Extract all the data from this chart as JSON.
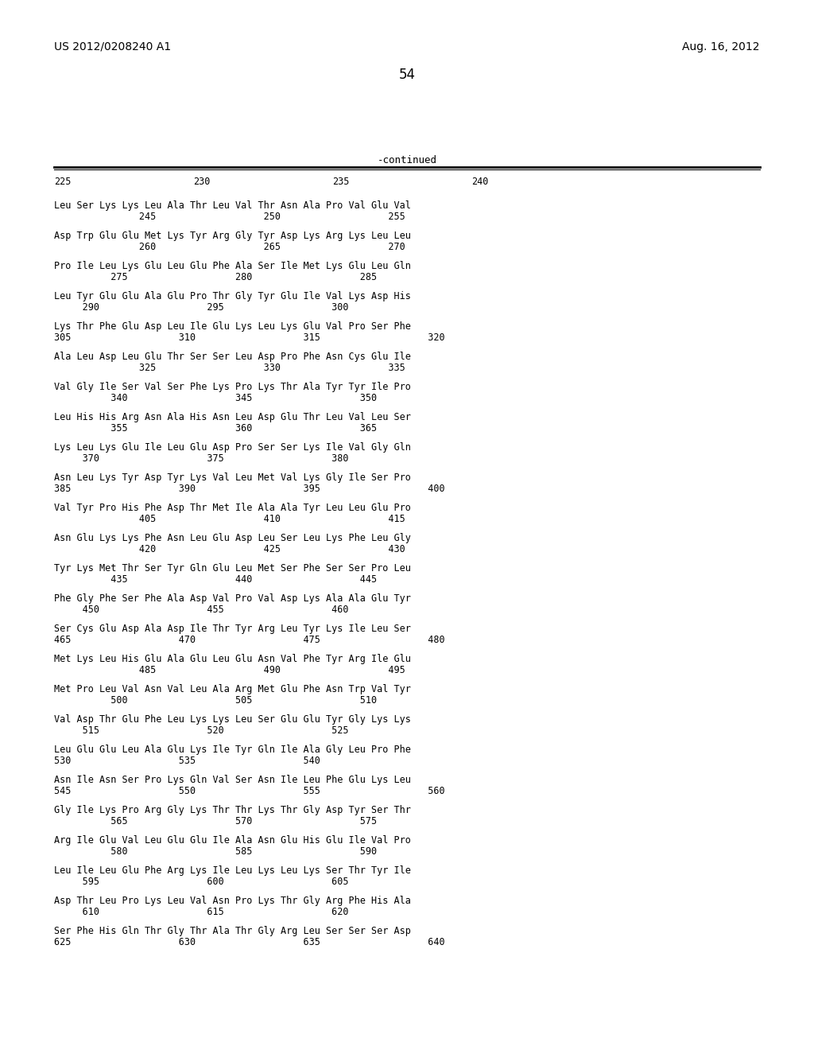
{
  "patent_number": "US 2012/0208240 A1",
  "date": "Aug. 16, 2012",
  "page_number": "54",
  "continued_label": "-continued",
  "background_color": "#ffffff",
  "text_color": "#000000",
  "seq_blocks": [
    {
      "seq": "Leu Ser Lys Lys Leu Ala Thr Leu Val Thr Asn Ala Pro Val Glu Val",
      "nums": "               245                   250                   255"
    },
    {
      "seq": "Asp Trp Glu Glu Met Lys Tyr Arg Gly Tyr Asp Lys Arg Lys Leu Leu",
      "nums": "               260                   265                   270"
    },
    {
      "seq": "Pro Ile Leu Lys Glu Leu Glu Phe Ala Ser Ile Met Lys Glu Leu Gln",
      "nums": "          275                   280                   285"
    },
    {
      "seq": "Leu Tyr Glu Glu Ala Glu Pro Thr Gly Tyr Glu Ile Val Lys Asp His",
      "nums": "     290                   295                   300"
    },
    {
      "seq": "Lys Thr Phe Glu Asp Leu Ile Glu Lys Leu Lys Glu Val Pro Ser Phe",
      "nums": "305                   310                   315                   320"
    },
    {
      "seq": "Ala Leu Asp Leu Glu Thr Ser Ser Leu Asp Pro Phe Asn Cys Glu Ile",
      "nums": "               325                   330                   335"
    },
    {
      "seq": "Val Gly Ile Ser Val Ser Phe Lys Pro Lys Thr Ala Tyr Tyr Ile Pro",
      "nums": "          340                   345                   350"
    },
    {
      "seq": "Leu His His Arg Asn Ala His Asn Leu Asp Glu Thr Leu Val Leu Ser",
      "nums": "          355                   360                   365"
    },
    {
      "seq": "Lys Leu Lys Glu Ile Leu Glu Asp Pro Ser Ser Lys Ile Val Gly Gln",
      "nums": "     370                   375                   380"
    },
    {
      "seq": "Asn Leu Lys Tyr Asp Tyr Lys Val Leu Met Val Lys Gly Ile Ser Pro",
      "nums": "385                   390                   395                   400"
    },
    {
      "seq": "Val Tyr Pro His Phe Asp Thr Met Ile Ala Ala Tyr Leu Leu Glu Pro",
      "nums": "               405                   410                   415"
    },
    {
      "seq": "Asn Glu Lys Lys Phe Asn Leu Glu Asp Leu Ser Leu Lys Phe Leu Gly",
      "nums": "               420                   425                   430"
    },
    {
      "seq": "Tyr Lys Met Thr Ser Tyr Gln Glu Leu Met Ser Phe Ser Ser Pro Leu",
      "nums": "          435                   440                   445"
    },
    {
      "seq": "Phe Gly Phe Ser Phe Ala Asp Val Pro Val Asp Lys Ala Ala Glu Tyr",
      "nums": "     450                   455                   460"
    },
    {
      "seq": "Ser Cys Glu Asp Ala Asp Ile Thr Tyr Arg Leu Tyr Lys Ile Leu Ser",
      "nums": "465                   470                   475                   480"
    },
    {
      "seq": "Met Lys Leu His Glu Ala Glu Leu Glu Asn Val Phe Tyr Arg Ile Glu",
      "nums": "               485                   490                   495"
    },
    {
      "seq": "Met Pro Leu Val Asn Val Leu Ala Arg Met Glu Phe Asn Trp Val Tyr",
      "nums": "          500                   505                   510"
    },
    {
      "seq": "Val Asp Thr Glu Phe Leu Lys Lys Leu Ser Glu Glu Tyr Gly Lys Lys",
      "nums": "     515                   520                   525"
    },
    {
      "seq": "Leu Glu Glu Leu Ala Glu Lys Ile Tyr Gln Ile Ala Gly Leu Pro Phe",
      "nums": "530                   535                   540"
    },
    {
      "seq": "Asn Ile Asn Ser Pro Lys Gln Val Ser Asn Ile Leu Phe Glu Lys Leu",
      "nums": "545                   550                   555                   560"
    },
    {
      "seq": "Gly Ile Lys Pro Arg Gly Lys Thr Thr Lys Thr Gly Asp Tyr Ser Thr",
      "nums": "          565                   570                   575"
    },
    {
      "seq": "Arg Ile Glu Val Leu Glu Glu Ile Ala Asn Glu His Glu Ile Val Pro",
      "nums": "          580                   585                   590"
    },
    {
      "seq": "Leu Ile Leu Glu Phe Arg Lys Ile Leu Lys Leu Lys Ser Thr Tyr Ile",
      "nums": "     595                   600                   605"
    },
    {
      "seq": "Asp Thr Leu Pro Lys Leu Val Asn Pro Lys Thr Gly Arg Phe His Ala",
      "nums": "     610                   615                   620"
    },
    {
      "seq": "Ser Phe His Gln Thr Gly Thr Ala Thr Gly Arg Leu Ser Ser Ser Asp",
      "nums": "625                   630                   635                   640"
    }
  ]
}
